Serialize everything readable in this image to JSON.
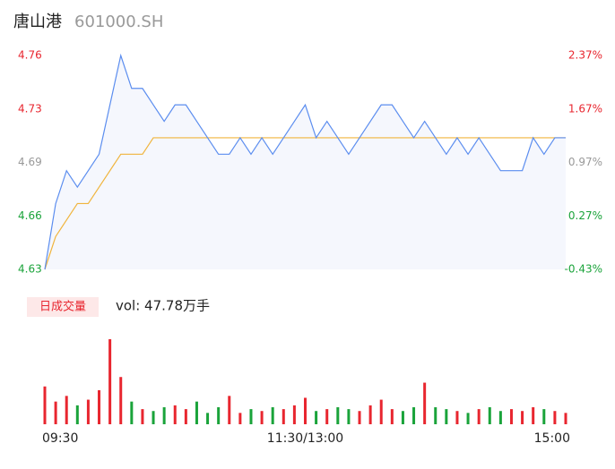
{
  "chart_data": {
    "type": "line",
    "title": "唐山港",
    "subtitle": "601000.SH",
    "categories": [
      "09:30",
      null,
      null,
      null,
      null,
      null,
      null,
      null,
      null,
      null,
      null,
      null,
      null,
      null,
      null,
      null,
      null,
      null,
      null,
      null,
      null,
      null,
      null,
      null,
      "11:30/13:00",
      null,
      null,
      null,
      null,
      null,
      null,
      null,
      null,
      null,
      null,
      null,
      null,
      null,
      null,
      null,
      null,
      null,
      null,
      null,
      null,
      null,
      null,
      null,
      "15:00"
    ],
    "series": [
      {
        "name": "price",
        "color": "#5b8def",
        "values": [
          4.63,
          4.67,
          4.69,
          4.68,
          4.69,
          4.7,
          4.73,
          4.76,
          4.74,
          4.74,
          4.73,
          4.72,
          4.73,
          4.73,
          4.72,
          4.71,
          4.7,
          4.7,
          4.71,
          4.7,
          4.71,
          4.7,
          4.71,
          4.72,
          4.73,
          4.71,
          4.72,
          4.71,
          4.7,
          4.71,
          4.72,
          4.73,
          4.73,
          4.72,
          4.71,
          4.72,
          4.71,
          4.7,
          4.71,
          4.7,
          4.71,
          4.7,
          4.69,
          4.69,
          4.69,
          4.71,
          4.7,
          4.71,
          4.71
        ]
      },
      {
        "name": "average",
        "color": "#f0b43c",
        "values": [
          4.63,
          4.65,
          4.66,
          4.67,
          4.67,
          4.68,
          4.69,
          4.7,
          4.7,
          4.7,
          4.71,
          4.71,
          4.71,
          4.71,
          4.71,
          4.71,
          4.71,
          4.71,
          4.71,
          4.71,
          4.71,
          4.71,
          4.71,
          4.71,
          4.71,
          4.71,
          4.71,
          4.71,
          4.71,
          4.71,
          4.71,
          4.71,
          4.71,
          4.71,
          4.71,
          4.71,
          4.71,
          4.71,
          4.71,
          4.71,
          4.71,
          4.71,
          4.71,
          4.71,
          4.71,
          4.71,
          4.71,
          4.71,
          4.71
        ]
      }
    ],
    "ylim": [
      4.63,
      4.76
    ],
    "yticks": [
      4.63,
      {
        "value": 4.6625,
        "label": "4.66"
      },
      {
        "value": 4.695,
        "label": "4.69"
      },
      {
        "value": 4.7275,
        "label": "4.73"
      },
      4.76
    ],
    "ytick_colors": [
      "#1aa33a",
      "#1aa33a",
      "#999999",
      "#e8262f",
      "#e8262f"
    ],
    "y2lim": [
      -0.43,
      2.37
    ],
    "y2ticks": [
      {
        "value": -0.43,
        "label": "-0.43%"
      },
      {
        "value": 0.27,
        "label": "0.27%"
      },
      {
        "value": 0.97,
        "label": "0.97%"
      },
      {
        "value": 1.67,
        "label": "1.67%"
      },
      {
        "value": 2.37,
        "label": "2.37%"
      }
    ],
    "area_color": "#f5f7fd",
    "volume": {
      "label": "日成交量",
      "text": "vol: 47.78万手",
      "up_color": "#e8262f",
      "down_color": "#1aa33a",
      "values": [
        2.0,
        1.2,
        1.5,
        1.0,
        1.3,
        1.8,
        4.5,
        2.5,
        1.2,
        0.8,
        0.7,
        0.9,
        1.0,
        0.8,
        1.2,
        0.6,
        0.9,
        1.5,
        0.6,
        0.8,
        0.7,
        0.9,
        0.8,
        1.0,
        1.4,
        0.7,
        0.8,
        0.9,
        0.8,
        0.7,
        1.0,
        1.3,
        0.8,
        0.7,
        0.9,
        2.2,
        0.9,
        0.8,
        0.7,
        0.6,
        0.8,
        0.9,
        0.7,
        0.8,
        0.7,
        0.9,
        0.8,
        0.7,
        0.6
      ]
    }
  }
}
